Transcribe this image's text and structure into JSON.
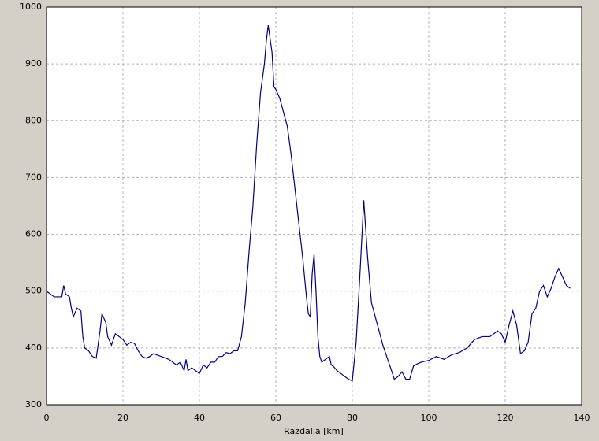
{
  "chart_data": {
    "type": "line",
    "x_label": "Razdalja [km]",
    "x": [
      0,
      2,
      4,
      4.5,
      5,
      6,
      6.5,
      7,
      8,
      9,
      9.5,
      10,
      11,
      12,
      13,
      14,
      14.5,
      15.5,
      16,
      17,
      18,
      19,
      20,
      21,
      22,
      23,
      24,
      25,
      26,
      27,
      28,
      30,
      32,
      34,
      35,
      36,
      36.5,
      37,
      38,
      39,
      40,
      41,
      42,
      43,
      44,
      45,
      46,
      47,
      48,
      49,
      50,
      51,
      52,
      53,
      54,
      55,
      56,
      57,
      57.5,
      58,
      59,
      59.5,
      60,
      61,
      62,
      63,
      64,
      65,
      66,
      67,
      68,
      68.5,
      69,
      69.5,
      70,
      70.5,
      71,
      71.5,
      72,
      73,
      74,
      74.5,
      75,
      76,
      77,
      78,
      79,
      80,
      81,
      82,
      83,
      84,
      85,
      86,
      87,
      88,
      89,
      90,
      91,
      92,
      93,
      94,
      95,
      96,
      97,
      98,
      100,
      102,
      104,
      106,
      108,
      110,
      112,
      114,
      116,
      118,
      119,
      120,
      121,
      122,
      123,
      124,
      125,
      126,
      127,
      128,
      129,
      130,
      131,
      132,
      133,
      134,
      135,
      136,
      137
    ],
    "series": [
      {
        "color": "#000080",
        "values": [
          500,
          490,
          490,
          510,
          495,
          490,
          470,
          455,
          470,
          465,
          420,
          400,
          395,
          385,
          382,
          430,
          460,
          445,
          420,
          405,
          425,
          420,
          415,
          405,
          410,
          408,
          395,
          385,
          382,
          385,
          390,
          385,
          380,
          370,
          375,
          360,
          380,
          360,
          365,
          360,
          355,
          370,
          365,
          375,
          375,
          385,
          385,
          392,
          390,
          395,
          395,
          420,
          480,
          570,
          650,
          760,
          850,
          900,
          940,
          968,
          920,
          860,
          855,
          840,
          815,
          790,
          740,
          680,
          620,
          560,
          490,
          460,
          455,
          530,
          565,
          500,
          420,
          385,
          375,
          380,
          385,
          370,
          368,
          360,
          355,
          350,
          345,
          342,
          410,
          530,
          660,
          560,
          480,
          455,
          430,
          405,
          385,
          365,
          345,
          350,
          358,
          345,
          345,
          368,
          372,
          375,
          378,
          385,
          380,
          388,
          392,
          400,
          415,
          420,
          420,
          430,
          425,
          410,
          440,
          465,
          440,
          390,
          395,
          410,
          460,
          470,
          500,
          510,
          490,
          505,
          525,
          540,
          525,
          510,
          505
        ]
      }
    ],
    "xlim": [
      0,
      140
    ],
    "ylim": [
      300,
      1000
    ],
    "xticks": [
      0,
      20,
      40,
      60,
      80,
      100,
      120,
      140
    ],
    "yticks": [
      300,
      400,
      500,
      600,
      700,
      800,
      900,
      1000
    ],
    "grid": true
  }
}
